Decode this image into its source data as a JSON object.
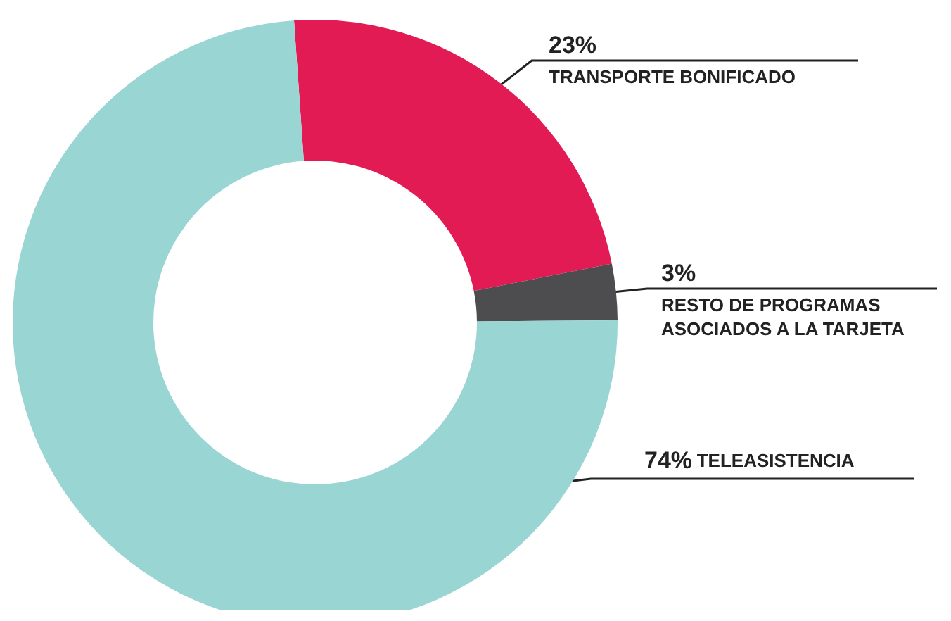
{
  "chart_data": {
    "type": "donut",
    "categories": [
      "TRANSPORTE BONIFICADO",
      "RESTO DE PROGRAMAS ASOCIADOS A LA TARJETA",
      "TELEASISTENCIA"
    ],
    "values": [
      23,
      3,
      74
    ],
    "value_labels": [
      "23%",
      "3%",
      "74%"
    ],
    "colors": [
      "#e31b54",
      "#4d4d50",
      "#98d5d3"
    ],
    "data_labels": true,
    "legend": false
  }
}
